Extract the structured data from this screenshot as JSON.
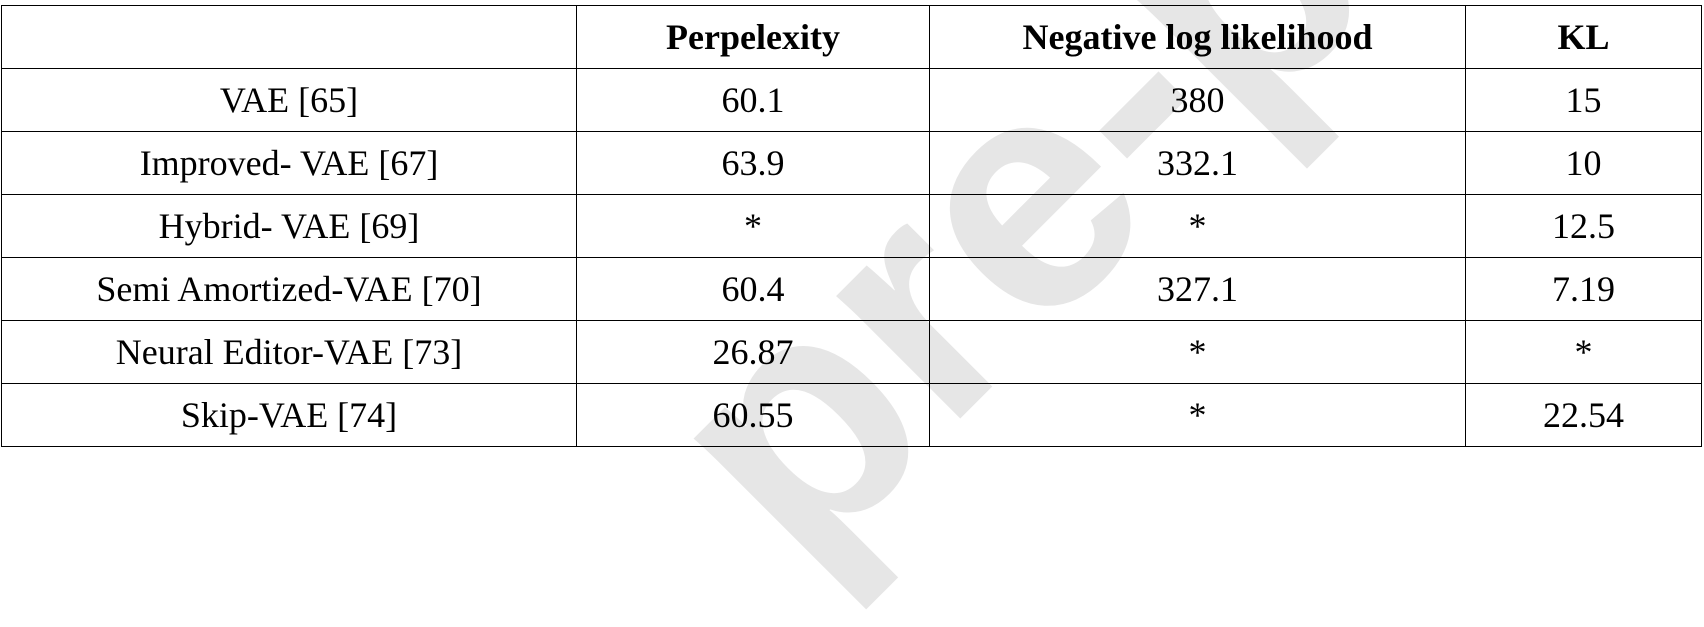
{
  "watermark": "pre-p",
  "table": {
    "headers": [
      "",
      "Perpelexity",
      "Negative log likelihood",
      "KL"
    ],
    "rows": [
      {
        "method": "VAE [65]",
        "perplexity": "60.1",
        "nll": "380",
        "kl": "15"
      },
      {
        "method": "Improved- VAE [67]",
        "perplexity": "63.9",
        "nll": "332.1",
        "kl": "10"
      },
      {
        "method": "Hybrid- VAE [69]",
        "perplexity": "*",
        "nll": "*",
        "kl": "12.5"
      },
      {
        "method": "Semi Amortized-VAE [70]",
        "perplexity": "60.4",
        "nll": "327.1",
        "kl": "7.19"
      },
      {
        "method": "Neural Editor-VAE [73]",
        "perplexity": "26.87",
        "nll": "*",
        "kl": "*"
      },
      {
        "method": "Skip-VAE [74]",
        "perplexity": "60.55",
        "nll": "*",
        "kl": "22.54"
      }
    ]
  }
}
